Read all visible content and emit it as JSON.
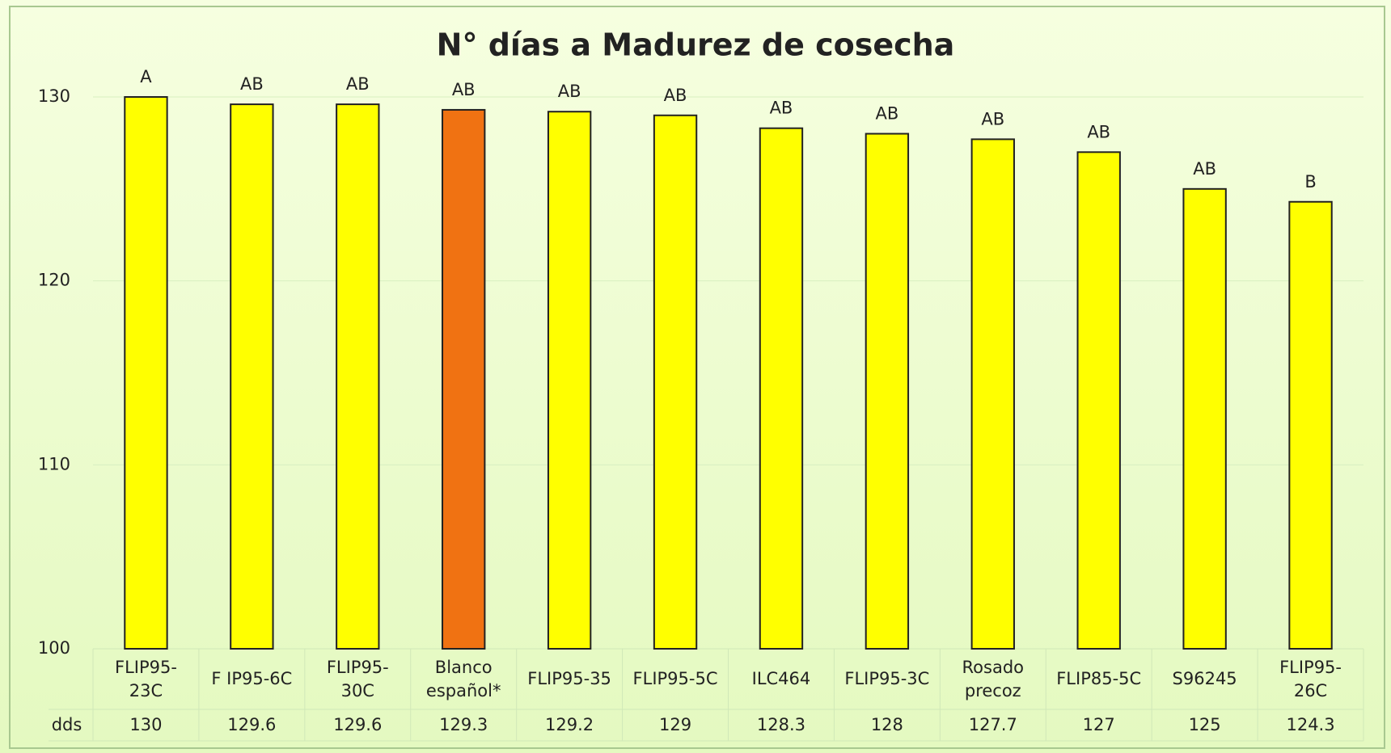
{
  "chart_data": {
    "type": "bar",
    "title": "N° días a Madurez de cosecha",
    "categories": [
      "FLIP95-23C",
      "F IP95-6C",
      "FLIP95-30C",
      "Blanco español*",
      "FLIP95-35",
      "FLIP95-5C",
      "ILC464",
      "FLIP95-3C",
      "Rosado precoz",
      "FLIP85-5C",
      "S96245",
      "FLIP95-26C"
    ],
    "values": [
      130,
      129.6,
      129.6,
      129.3,
      129.2,
      129,
      128.3,
      128,
      127.7,
      127,
      125,
      124.3
    ],
    "groups": [
      "A",
      "AB",
      "AB",
      "AB",
      "AB",
      "AB",
      "AB",
      "AB",
      "AB",
      "AB",
      "AB",
      "B"
    ],
    "colors": [
      "#ffff00",
      "#ffff00",
      "#ffff00",
      "#f07212",
      "#ffff00",
      "#ffff00",
      "#ffff00",
      "#ffff00",
      "#ffff00",
      "#ffff00",
      "#ffff00",
      "#ffff00"
    ],
    "table_row_label": "dds",
    "ylim": [
      100,
      130
    ],
    "yticks": [
      100,
      110,
      120,
      130
    ],
    "grid": true
  }
}
